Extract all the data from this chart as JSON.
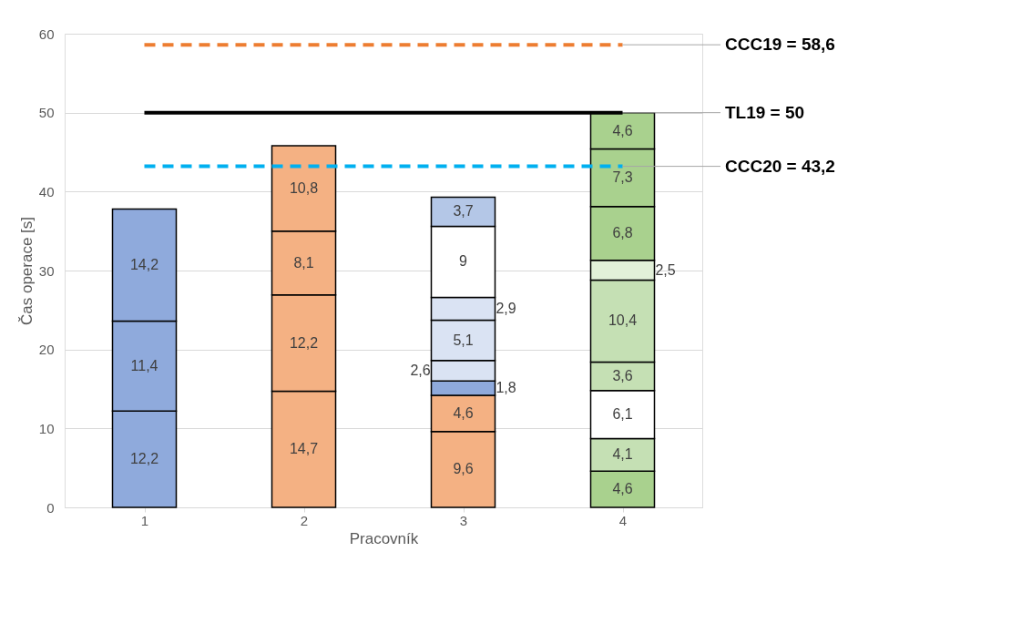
{
  "chart_data": {
    "type": "bar",
    "stacked": true,
    "categories": [
      "1",
      "2",
      "3",
      "4"
    ],
    "xlabel": "Pracovník",
    "ylabel": "Čas operace [s]",
    "series": [
      {
        "values": [
          12.2,
          14.7,
          9.6,
          4.6
        ],
        "value_labels": [
          "12,2",
          "14,7",
          "9,6",
          "4,6"
        ],
        "colors": [
          "#8faadc",
          "#f4b183",
          "#f4b183",
          "#a9d18e"
        ]
      },
      {
        "values": [
          11.4,
          12.2,
          4.6,
          4.1
        ],
        "value_labels": [
          "11,4",
          "12,2",
          "4,6",
          "4,1"
        ],
        "colors": [
          "#8faadc",
          "#f4b183",
          "#f4b183",
          "#c5e0b4"
        ]
      },
      {
        "values": [
          14.2,
          8.1,
          1.8,
          6.1
        ],
        "value_labels": [
          "14,2",
          "8,1",
          "1,8",
          "6,1"
        ],
        "colors": [
          "#8faadc",
          "#f4b183",
          "#8faadc",
          "#ffffff"
        ]
      },
      {
        "values": [
          null,
          10.8,
          2.6,
          3.6
        ],
        "value_labels": [
          null,
          "10,8",
          "2,6",
          "3,6"
        ],
        "colors": [
          null,
          "#f4b183",
          "#dae3f3",
          "#c5e0b4"
        ]
      },
      {
        "values": [
          null,
          null,
          5.1,
          10.4
        ],
        "value_labels": [
          null,
          null,
          "5,1",
          "10,4"
        ],
        "colors": [
          null,
          null,
          "#dae3f3",
          "#c5e0b4"
        ]
      },
      {
        "values": [
          null,
          null,
          2.9,
          2.5
        ],
        "value_labels": [
          null,
          null,
          "2,9",
          "2,5"
        ],
        "colors": [
          null,
          null,
          "#dae3f3",
          "#e2f0d9"
        ]
      },
      {
        "values": [
          null,
          null,
          9,
          6.8
        ],
        "value_labels": [
          null,
          null,
          "9",
          "6,8"
        ],
        "colors": [
          null,
          null,
          "#ffffff",
          "#a9d18e"
        ]
      },
      {
        "values": [
          null,
          null,
          3.7,
          7.3
        ],
        "value_labels": [
          null,
          null,
          "3,7",
          "7,3"
        ],
        "colors": [
          null,
          null,
          "#b4c7e7",
          "#a9d18e"
        ]
      },
      {
        "values": [
          null,
          null,
          null,
          4.6
        ],
        "value_labels": [
          null,
          null,
          null,
          "4,6"
        ],
        "colors": [
          null,
          null,
          null,
          "#a9d18e"
        ]
      }
    ],
    "ylim": [
      0,
      60
    ],
    "yticks": [
      0,
      10,
      20,
      30,
      40,
      50,
      60
    ],
    "grid": "y",
    "ref_lines": [
      {
        "axis": "y",
        "value": 58.6,
        "label": "CCC19 = 58,6",
        "color": "#ed7d31",
        "line_style": "dashed"
      },
      {
        "axis": "y",
        "value": 50,
        "label": "TL19 = 50",
        "color": "#000000",
        "line_style": "solid"
      },
      {
        "axis": "y",
        "value": 43.2,
        "label": "CCC20 = 43,2",
        "color": "#00b0f0",
        "line_style": "dashed"
      }
    ]
  }
}
